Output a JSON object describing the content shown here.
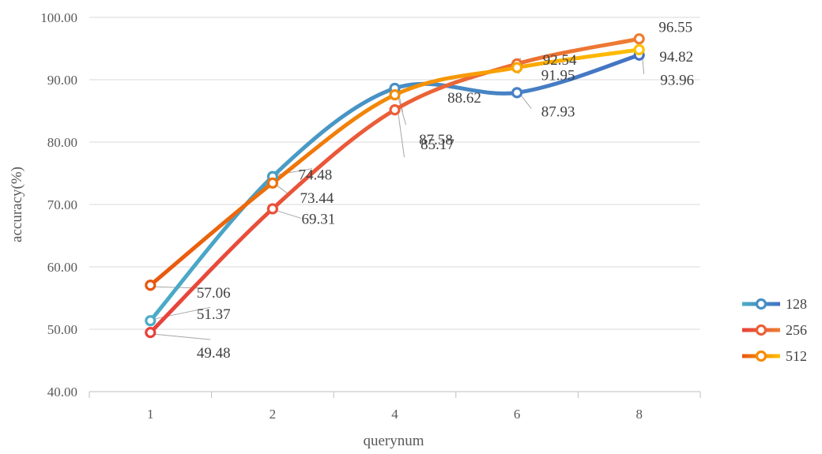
{
  "chart_data": {
    "type": "line",
    "title": "",
    "xlabel": "querynum",
    "ylabel": "accuracy(%)",
    "categories": [
      "1",
      "2",
      "4",
      "6",
      "8"
    ],
    "ylim": [
      40,
      100
    ],
    "yticks": [
      "40.00",
      "50.00",
      "60.00",
      "70.00",
      "80.00",
      "90.00",
      "100.00"
    ],
    "grid": true,
    "legend_position": "right",
    "series": [
      {
        "name": "128",
        "values": [
          51.37,
          74.48,
          88.62,
          87.93,
          93.96
        ],
        "labels": [
          "51.37",
          "74.48",
          "88.62",
          "87.93",
          "93.96"
        ],
        "color_start": "#4bacc6",
        "color_end": "#4472c4"
      },
      {
        "name": "256",
        "values": [
          49.48,
          69.31,
          85.17,
          92.54,
          96.55
        ],
        "labels": [
          "49.48",
          "69.31",
          "85.17",
          "92.54",
          "96.55"
        ],
        "color_start": "#e8413c",
        "color_end": "#ed7d31"
      },
      {
        "name": "512",
        "values": [
          57.06,
          73.44,
          87.58,
          91.95,
          94.82
        ],
        "labels": [
          "57.06",
          "73.44",
          "87.58",
          "91.95",
          "94.82"
        ],
        "color_start": "#e8560f",
        "color_end": "#ffc000"
      }
    ]
  }
}
